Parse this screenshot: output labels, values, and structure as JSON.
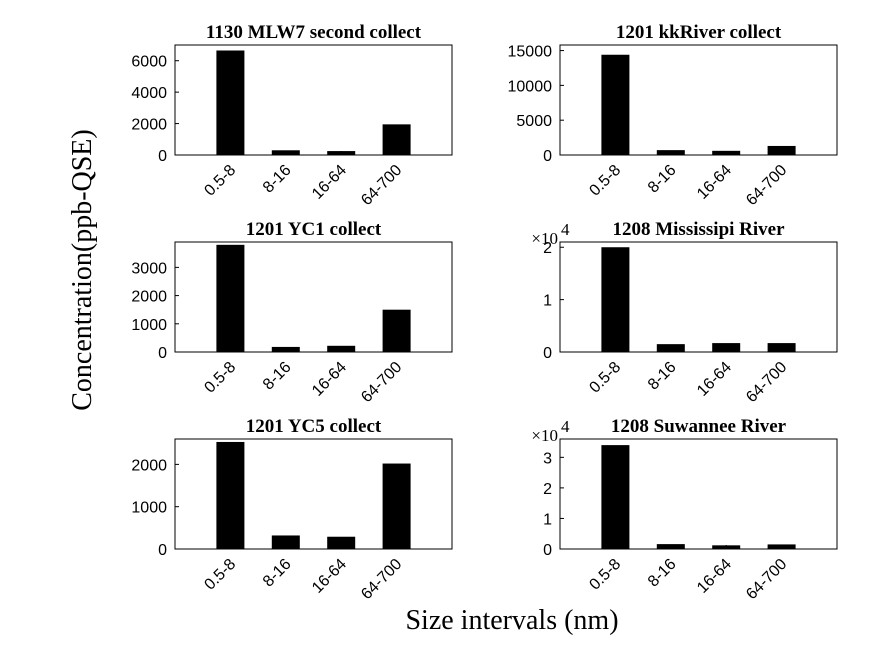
{
  "figure": {
    "ylabel": "Concentration(ppb-QSE)",
    "xlabel": "Size intervals (nm)"
  },
  "chart_data": [
    {
      "type": "bar",
      "title": "1130 MLW7 second collect",
      "categories": [
        "0.5-8",
        "8-16",
        "16-64",
        "64-700"
      ],
      "values": [
        6650,
        300,
        250,
        1950
      ],
      "ylim": [
        0,
        7000
      ],
      "yticks": [
        0,
        2000,
        4000,
        6000
      ],
      "ytick_labels": [
        "0",
        "2000",
        "4000",
        "6000"
      ],
      "multiplier": "",
      "xlabel": "",
      "ylabel": "",
      "grid": false
    },
    {
      "type": "bar",
      "title": "1201 kkRiver collect",
      "categories": [
        "0.5-8",
        "8-16",
        "16-64",
        "64-700"
      ],
      "values": [
        14400,
        700,
        600,
        1300
      ],
      "ylim": [
        0,
        15800
      ],
      "yticks": [
        0,
        5000,
        10000,
        15000
      ],
      "ytick_labels": [
        "0",
        "5000",
        "10000",
        "15000"
      ],
      "multiplier": "",
      "xlabel": "",
      "ylabel": "",
      "grid": false
    },
    {
      "type": "bar",
      "title": "1201 YC1 collect",
      "categories": [
        "0.5-8",
        "8-16",
        "16-64",
        "64-700"
      ],
      "values": [
        3800,
        180,
        220,
        1500
      ],
      "ylim": [
        0,
        3900
      ],
      "yticks": [
        0,
        1000,
        2000,
        3000
      ],
      "ytick_labels": [
        "0",
        "1000",
        "2000",
        "3000"
      ],
      "multiplier": "",
      "xlabel": "",
      "ylabel": "",
      "grid": false
    },
    {
      "type": "bar",
      "title": "1208 Mississipi River",
      "categories": [
        "0.5-8",
        "8-16",
        "16-64",
        "64-700"
      ],
      "values": [
        20000,
        1500,
        1700,
        1700
      ],
      "ylim": [
        0,
        21000
      ],
      "yticks": [
        0,
        10000,
        20000
      ],
      "ytick_labels": [
        "0",
        "1",
        "2"
      ],
      "multiplier": "×10",
      "multiplier_exp": "4",
      "xlabel": "",
      "ylabel": "",
      "grid": false
    },
    {
      "type": "bar",
      "title": "1201 YC5 collect",
      "categories": [
        "0.5-8",
        "8-16",
        "16-64",
        "64-700"
      ],
      "values": [
        2530,
        320,
        290,
        2020
      ],
      "ylim": [
        0,
        2600
      ],
      "yticks": [
        0,
        1000,
        2000
      ],
      "ytick_labels": [
        "0",
        "1000",
        "2000"
      ],
      "multiplier": "",
      "xlabel": "",
      "ylabel": "",
      "grid": false
    },
    {
      "type": "bar",
      "title": "1208 Suwannee River",
      "categories": [
        "0.5-8",
        "8-16",
        "16-64",
        "64-700"
      ],
      "values": [
        34000,
        1600,
        1200,
        1500
      ],
      "ylim": [
        0,
        36000
      ],
      "yticks": [
        0,
        10000,
        20000,
        30000
      ],
      "ytick_labels": [
        "0",
        "1",
        "2",
        "3"
      ],
      "multiplier": "×10",
      "multiplier_exp": "4",
      "xlabel": "",
      "ylabel": "",
      "grid": false
    }
  ]
}
